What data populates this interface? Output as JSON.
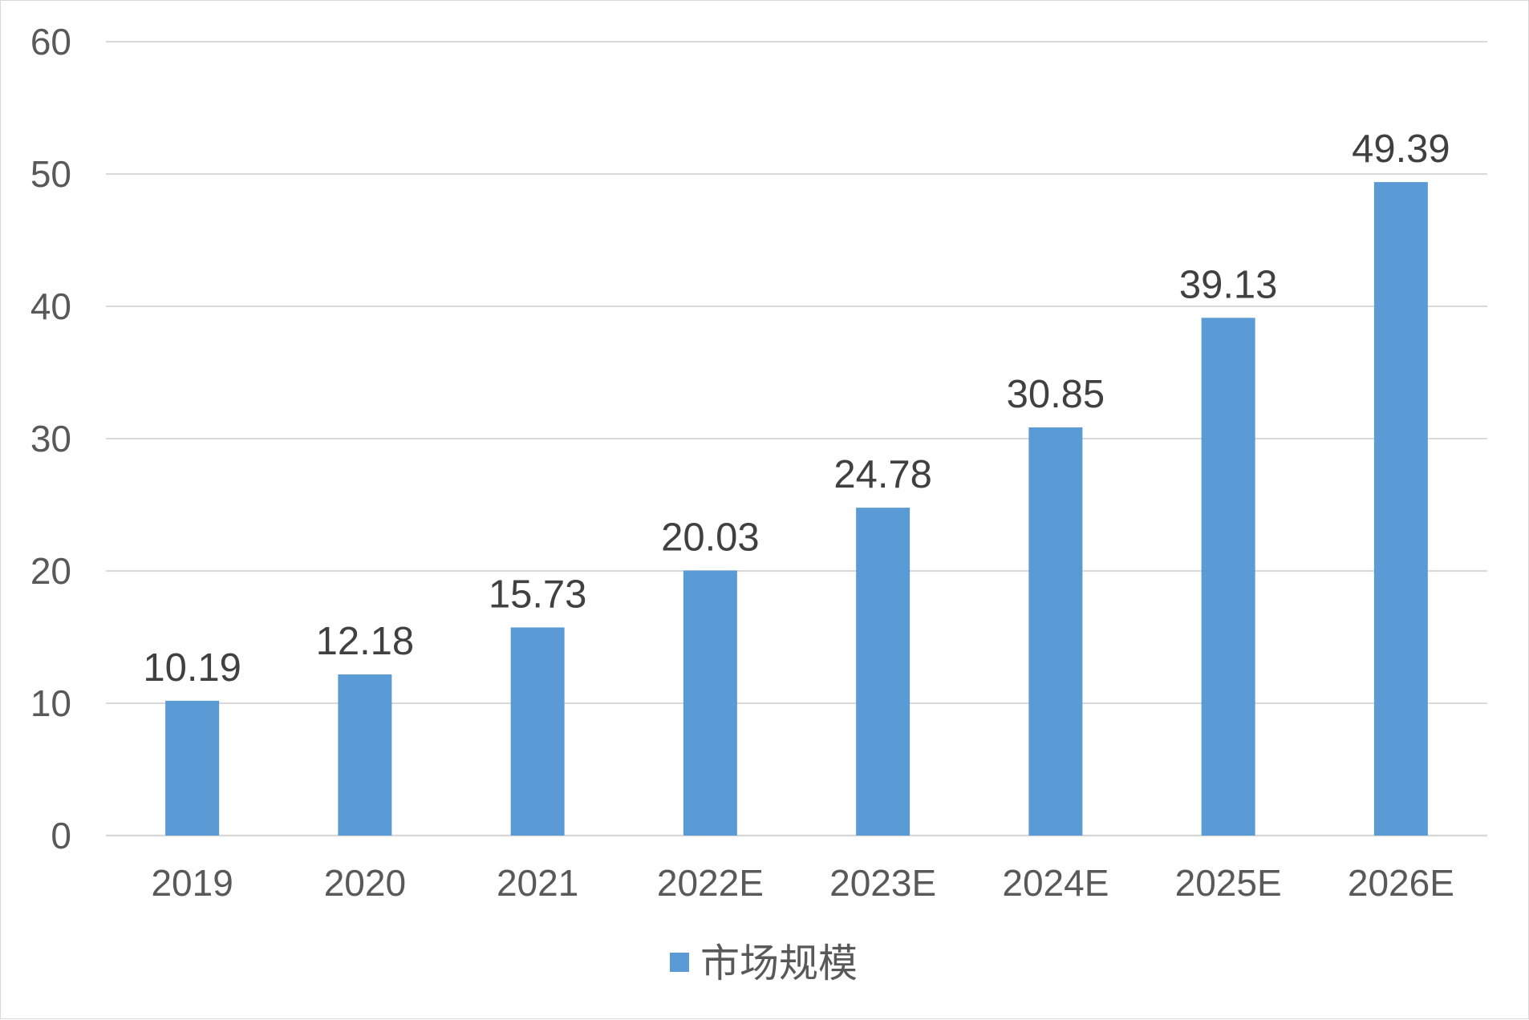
{
  "chart_data": {
    "type": "bar",
    "title": "",
    "xlabel": "",
    "ylabel": "",
    "categories": [
      "2019",
      "2020",
      "2021",
      "2022E",
      "2023E",
      "2024E",
      "2025E",
      "2026E"
    ],
    "series": [
      {
        "name": "市场规模",
        "color": "#5b9bd5",
        "values": [
          10.19,
          12.18,
          15.73,
          20.03,
          24.78,
          30.85,
          39.13,
          49.39
        ],
        "labels": [
          "10.19",
          "12.18",
          "15.73",
          "20.03",
          "24.78",
          "30.85",
          "39.13",
          "49.39"
        ]
      }
    ],
    "ylim": [
      0,
      60
    ],
    "yticks": [
      0,
      10,
      20,
      30,
      40,
      50,
      60
    ],
    "grid": true,
    "legend": "bottom-center"
  }
}
